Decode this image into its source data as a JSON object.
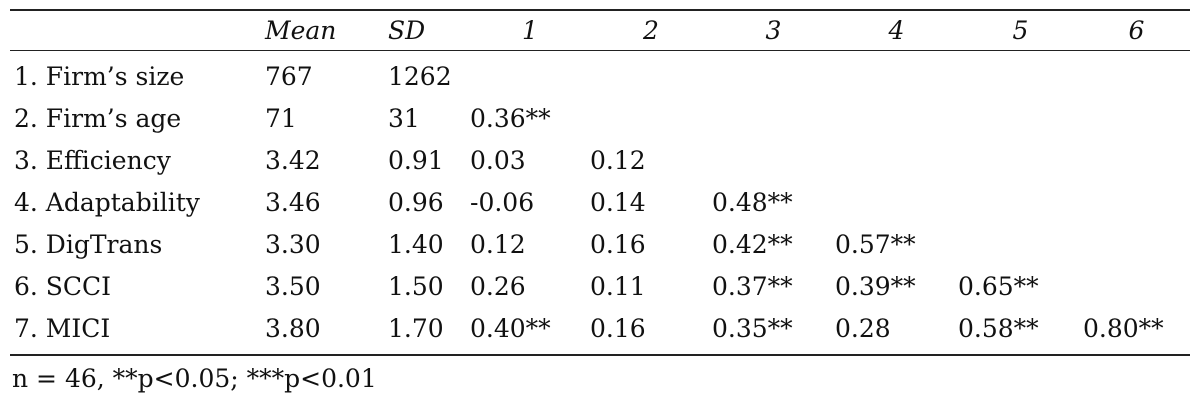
{
  "header": {
    "columns": [
      "Mean",
      "SD",
      "1",
      "2",
      "3",
      "4",
      "5",
      "6"
    ]
  },
  "table": {
    "rows": [
      {
        "label": "1. Firm’s size",
        "cells": [
          "767",
          "1262"
        ]
      },
      {
        "label": "2. Firm’s age",
        "cells": [
          "71",
          "31",
          "0.36**"
        ]
      },
      {
        "label": "3. Efficiency",
        "cells": [
          "3.42",
          "0.91",
          "0.03",
          "0.12"
        ]
      },
      {
        "label": "4. Adaptability",
        "cells": [
          "3.46",
          "0.96",
          "-0.06",
          "0.14",
          "0.48**"
        ]
      },
      {
        "label": "5. DigTrans",
        "cells": [
          "3.30",
          "1.40",
          "0.12",
          "0.16",
          "0.42**",
          "0.57**"
        ]
      },
      {
        "label": "6. SCCI",
        "cells": [
          "3.50",
          "1.50",
          "0.26",
          "0.11",
          "0.37**",
          "0.39**",
          "0.65**"
        ]
      },
      {
        "label": "7. MICI",
        "cells": [
          "3.80",
          "1.70",
          "0.40**",
          "0.16",
          "0.35**",
          "0.28",
          "0.58**",
          "0.80**"
        ]
      }
    ]
  },
  "footnote": "n = 46, **p<0.05; ***p<0.01"
}
